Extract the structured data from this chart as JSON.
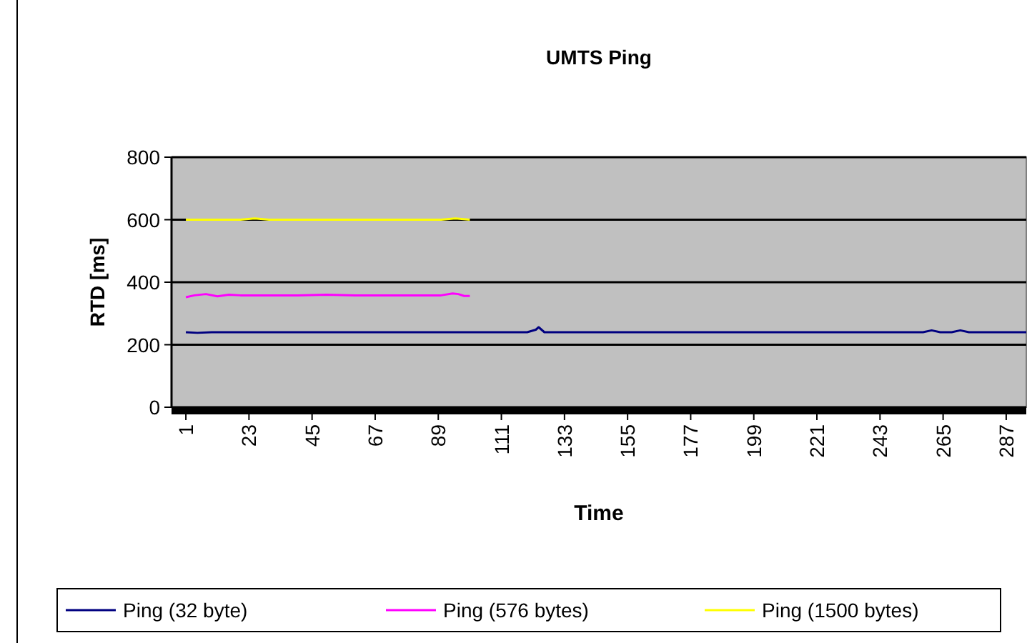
{
  "chart_data": {
    "type": "line",
    "title": "UMTS Ping",
    "xlabel": "Time",
    "ylabel": "RTD [ms]",
    "xlim": [
      -4,
      294
    ],
    "xticks": [
      1,
      23,
      45,
      67,
      89,
      111,
      133,
      155,
      177,
      199,
      221,
      243,
      265,
      287
    ],
    "ylim": [
      0,
      800
    ],
    "yticks": [
      0,
      200,
      400,
      600,
      800
    ],
    "grid": "y",
    "legend": "bottom",
    "marker": "none",
    "series": [
      {
        "name": "Ping (32 byte)",
        "color": "#000080",
        "x": [
          1,
          5,
          10,
          20,
          30,
          40,
          50,
          60,
          70,
          80,
          90,
          100,
          110,
          120,
          123,
          124,
          126,
          130,
          140,
          150,
          160,
          170,
          180,
          190,
          200,
          210,
          220,
          230,
          240,
          250,
          258,
          261,
          264,
          268,
          271,
          274,
          280,
          290,
          294
        ],
        "values": [
          240,
          238,
          240,
          240,
          240,
          240,
          240,
          240,
          240,
          240,
          240,
          240,
          240,
          240,
          248,
          256,
          240,
          240,
          240,
          240,
          240,
          240,
          240,
          240,
          240,
          240,
          240,
          240,
          240,
          240,
          240,
          246,
          240,
          240,
          246,
          240,
          240,
          240,
          240
        ]
      },
      {
        "name": "Ping (576 bytes)",
        "color": "#ff00ff",
        "x": [
          1,
          4,
          8,
          12,
          16,
          20,
          30,
          40,
          50,
          60,
          70,
          80,
          90,
          94,
          96,
          98,
          100
        ],
        "values": [
          352,
          358,
          362,
          355,
          360,
          358,
          358,
          358,
          360,
          358,
          358,
          358,
          358,
          364,
          362,
          356,
          356
        ]
      },
      {
        "name": "Ping (1500 bytes)",
        "color": "#ffff00",
        "x": [
          1,
          10,
          20,
          25,
          30,
          40,
          50,
          60,
          70,
          80,
          90,
          95,
          100
        ],
        "values": [
          600,
          600,
          600,
          604,
          600,
          600,
          600,
          600,
          600,
          600,
          600,
          604,
          600
        ]
      }
    ]
  }
}
